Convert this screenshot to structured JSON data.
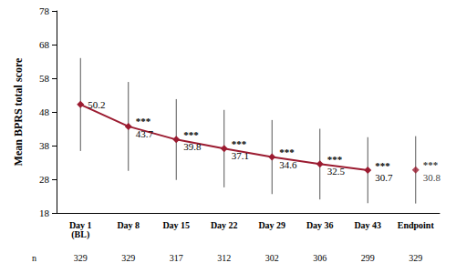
{
  "chart_data": {
    "type": "line",
    "y_label": "Mean BPRS total score",
    "categories": [
      "Day 1 (BL)",
      "Day 8",
      "Day 15",
      "Day 22",
      "Day 29",
      "Day 36",
      "Day 43",
      "Endpoint"
    ],
    "series": [
      {
        "type": "line",
        "marker": "diamond",
        "color": "#9b1b30",
        "values": [
          50.2,
          43.7,
          39.8,
          37.1,
          34.6,
          32.5,
          30.7,
          null
        ],
        "error": [
          13.8,
          13.2,
          12.0,
          11.5,
          11.0,
          10.5,
          9.8,
          null
        ],
        "annotations": [
          null,
          "***",
          "***",
          "***",
          "***",
          "***",
          "***",
          null
        ]
      },
      {
        "type": "scatter",
        "marker": "diamond",
        "color": "#9b1b30",
        "values": [
          null,
          null,
          null,
          null,
          null,
          null,
          null,
          30.8
        ],
        "error": [
          null,
          null,
          null,
          null,
          null,
          null,
          null,
          10.0
        ],
        "annotations": [
          null,
          null,
          null,
          null,
          null,
          null,
          null,
          "***"
        ]
      }
    ],
    "n": {
      "label": "n",
      "values": [
        329,
        329,
        317,
        312,
        302,
        306,
        299,
        329
      ]
    },
    "ylim": [
      18,
      78
    ],
    "yticks": [
      18,
      28,
      38,
      48,
      58,
      68,
      78
    ],
    "data_labels": true,
    "grid": false
  }
}
